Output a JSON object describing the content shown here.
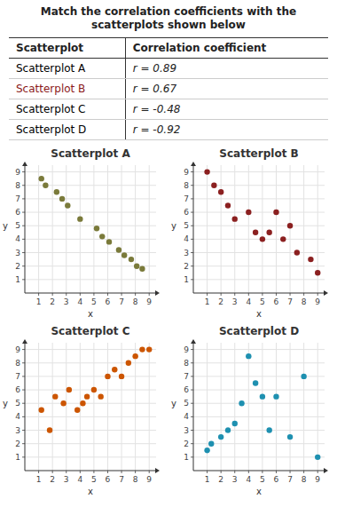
{
  "chart_data": [
    {
      "type": "table",
      "title": "Match the correlation coefficients with the scatterplots shown below",
      "columns": [
        "Scatterplot",
        "Correlation coefficient"
      ],
      "rows": [
        [
          "Scatterplot A",
          "r = 0.89"
        ],
        [
          "Scatterplot B",
          "r = 0.67"
        ],
        [
          "Scatterplot C",
          "r = -0.48"
        ],
        [
          "Scatterplot D",
          "r = -0.92"
        ]
      ],
      "colors": [
        "#000000",
        "#8B1A1A",
        "#000000",
        "#000000"
      ]
    },
    {
      "type": "scatter",
      "title": "Scatterplot A",
      "xlabel": "x",
      "ylabel": "y",
      "color": "#7A7A3A",
      "x": [
        1.2,
        1.5,
        2.3,
        2.7,
        3.1,
        4.0,
        5.2,
        5.6,
        6.1,
        6.8,
        7.2,
        7.7,
        8.1,
        8.5
      ],
      "values": [
        8.5,
        8.0,
        7.5,
        7.0,
        6.5,
        5.5,
        4.8,
        4.2,
        3.8,
        3.2,
        2.8,
        2.5,
        2.0,
        1.8
      ],
      "xlim": [
        0,
        9.5
      ],
      "ylim": [
        0,
        9.5
      ],
      "xticks": [
        1,
        2,
        3,
        4,
        5,
        6,
        7,
        8,
        9
      ],
      "yticks": [
        1,
        2,
        3,
        4,
        5,
        6,
        7,
        8,
        9
      ],
      "grid": true
    },
    {
      "type": "scatter",
      "title": "Scatterplot B",
      "xlabel": "x",
      "ylabel": "y",
      "color": "#8B2020",
      "x": [
        1.0,
        1.5,
        2.0,
        2.5,
        3.0,
        4.0,
        4.5,
        5.0,
        5.5,
        6.0,
        6.5,
        7.0,
        7.5,
        8.5,
        9.0
      ],
      "values": [
        9.0,
        8.0,
        7.5,
        6.5,
        5.5,
        6.0,
        4.5,
        4.0,
        4.5,
        6.0,
        4.0,
        5.0,
        3.0,
        2.5,
        1.5
      ],
      "xlim": [
        0,
        9.5
      ],
      "ylim": [
        0,
        9.5
      ],
      "xticks": [
        1,
        2,
        3,
        4,
        5,
        6,
        7,
        8,
        9
      ],
      "yticks": [
        1,
        2,
        3,
        4,
        5,
        6,
        7,
        8,
        9
      ],
      "grid": true
    },
    {
      "type": "scatter",
      "title": "Scatterplot C",
      "xlabel": "x",
      "ylabel": "y",
      "color": "#CC5500",
      "x": [
        1.2,
        1.8,
        2.2,
        2.8,
        3.2,
        3.8,
        4.2,
        4.5,
        5.0,
        5.5,
        6.0,
        6.5,
        7.0,
        7.5,
        8.0,
        8.5,
        9.0
      ],
      "values": [
        4.5,
        3.0,
        5.5,
        5.0,
        6.0,
        4.5,
        5.0,
        5.5,
        6.0,
        5.5,
        7.0,
        7.5,
        7.0,
        8.0,
        8.5,
        9.0,
        9.0
      ],
      "xlim": [
        0,
        9.5
      ],
      "ylim": [
        0,
        9.5
      ],
      "xticks": [
        1,
        2,
        3,
        4,
        5,
        6,
        7,
        8,
        9
      ],
      "yticks": [
        1,
        2,
        3,
        4,
        5,
        6,
        7,
        8,
        9
      ],
      "grid": true
    },
    {
      "type": "scatter",
      "title": "Scatterplot D",
      "xlabel": "x",
      "ylabel": "y",
      "color": "#1E90B0",
      "x": [
        1.0,
        1.3,
        2.0,
        2.5,
        3.0,
        3.5,
        4.0,
        4.5,
        5.0,
        5.5,
        6.0,
        7.0,
        8.0,
        9.0
      ],
      "values": [
        1.5,
        2.0,
        2.5,
        3.0,
        3.5,
        5.0,
        8.5,
        6.5,
        5.5,
        3.0,
        5.5,
        2.5,
        7.0,
        1.0
      ],
      "xlim": [
        0,
        9.5
      ],
      "ylim": [
        0,
        9.5
      ],
      "xticks": [
        1,
        2,
        3,
        4,
        5,
        6,
        7,
        8,
        9
      ],
      "yticks": [
        1,
        2,
        3,
        4,
        5,
        6,
        7,
        8,
        9
      ],
      "grid": true
    }
  ]
}
